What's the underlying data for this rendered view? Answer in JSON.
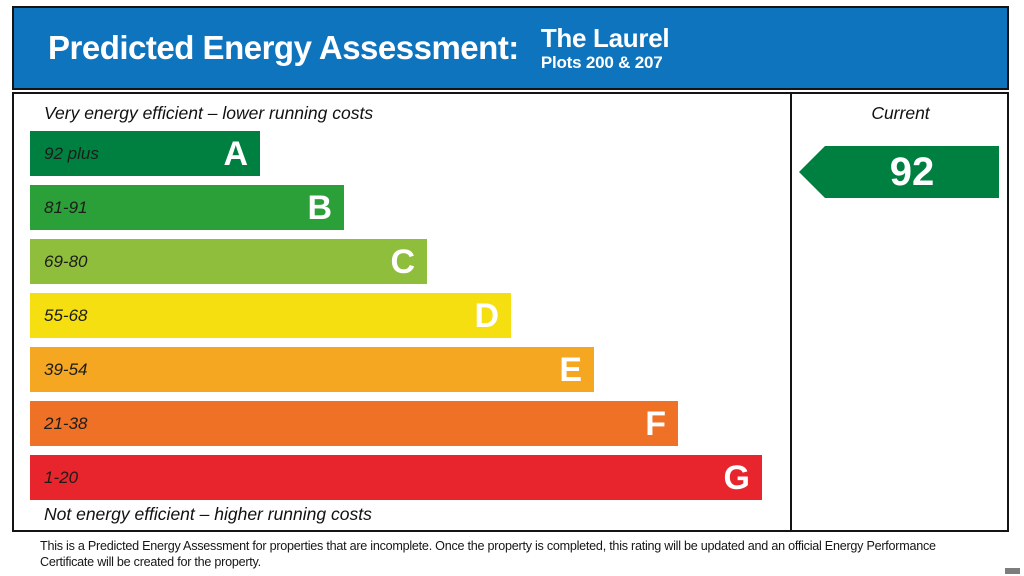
{
  "header": {
    "title": "Predicted Energy Assessment:",
    "property_name": "The Laurel",
    "property_plots": "Plots 200 & 207",
    "background_color": "#0e74bd"
  },
  "chart_data": {
    "type": "bar",
    "title": "Predicted Energy Assessment",
    "top_label": "Very energy efficient – lower running costs",
    "bottom_label": "Not energy efficient – higher running costs",
    "current_column_label": "Current",
    "bands": [
      {
        "letter": "A",
        "range": "92 plus",
        "color": "#008040"
      },
      {
        "letter": "B",
        "range": "81-91",
        "color": "#2ba038"
      },
      {
        "letter": "C",
        "range": "69-80",
        "color": "#8fbe3c"
      },
      {
        "letter": "D",
        "range": "55-68",
        "color": "#f5df10"
      },
      {
        "letter": "E",
        "range": "39-54",
        "color": "#f6a721"
      },
      {
        "letter": "F",
        "range": "21-38",
        "color": "#ee7126"
      },
      {
        "letter": "G",
        "range": "1-20",
        "color": "#e8252c"
      }
    ],
    "current_rating": {
      "value": 92,
      "band": "A",
      "arrow_color": "#008040"
    }
  },
  "footer": {
    "lines": [
      "This is a Predicted Energy Assessment for properties that are incomplete. Once the property is completed, this rating will be updated and an official Energy Performance",
      "Certificate will be created for the property."
    ]
  }
}
